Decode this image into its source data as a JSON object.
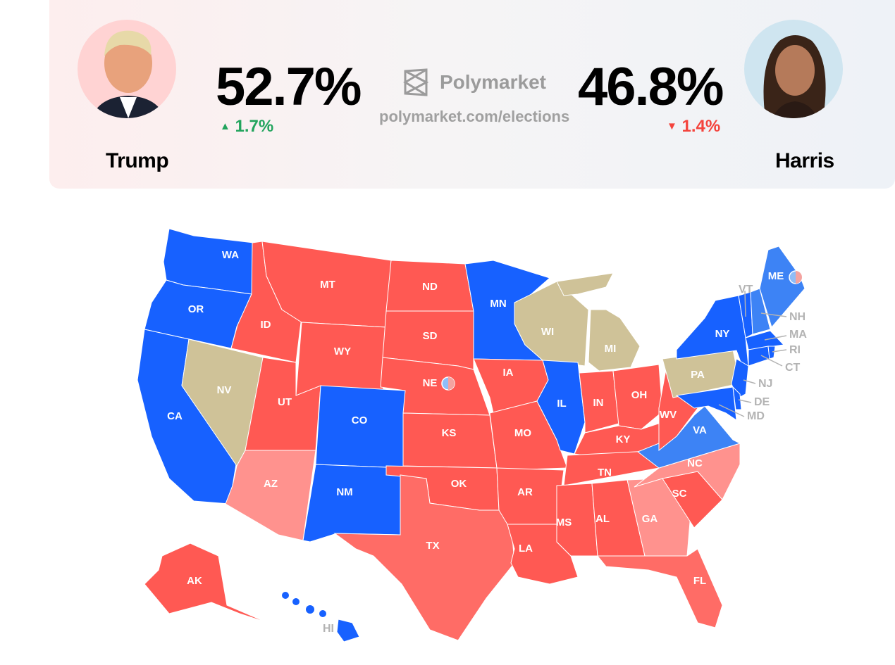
{
  "header": {
    "left": {
      "name": "Trump",
      "percent": "52.7%",
      "change": "1.7%",
      "direction": "up",
      "avatar_bg": "#ffd3d3"
    },
    "right": {
      "name": "Harris",
      "percent": "46.8%",
      "change": "1.4%",
      "direction": "down",
      "avatar_bg": "#cfe5f0"
    },
    "logo_text": "Polymarket",
    "url": "polymarket.com/elections",
    "up_color": "#22a45d",
    "down_color": "#f4433c"
  },
  "categories": {
    "dem_safe": "#1761ff",
    "dem_likely": "#3d83f5",
    "rep_safe": "#ff5953",
    "rep_likely": "#ff6c66",
    "rep_lean": "#ff928e",
    "tossup": "#cfc298"
  },
  "states": [
    {
      "abbr": "WA",
      "cat": "dem_safe"
    },
    {
      "abbr": "OR",
      "cat": "dem_safe"
    },
    {
      "abbr": "CA",
      "cat": "dem_safe"
    },
    {
      "abbr": "NV",
      "cat": "tossup"
    },
    {
      "abbr": "ID",
      "cat": "rep_safe"
    },
    {
      "abbr": "MT",
      "cat": "rep_safe"
    },
    {
      "abbr": "WY",
      "cat": "rep_safe"
    },
    {
      "abbr": "UT",
      "cat": "rep_safe"
    },
    {
      "abbr": "AZ",
      "cat": "rep_lean"
    },
    {
      "abbr": "CO",
      "cat": "dem_safe"
    },
    {
      "abbr": "NM",
      "cat": "dem_safe"
    },
    {
      "abbr": "ND",
      "cat": "rep_safe"
    },
    {
      "abbr": "SD",
      "cat": "rep_safe"
    },
    {
      "abbr": "NE",
      "cat": "rep_safe"
    },
    {
      "abbr": "KS",
      "cat": "rep_safe"
    },
    {
      "abbr": "OK",
      "cat": "rep_safe"
    },
    {
      "abbr": "TX",
      "cat": "rep_likely"
    },
    {
      "abbr": "MN",
      "cat": "dem_safe"
    },
    {
      "abbr": "IA",
      "cat": "rep_safe"
    },
    {
      "abbr": "MO",
      "cat": "rep_safe"
    },
    {
      "abbr": "AR",
      "cat": "rep_safe"
    },
    {
      "abbr": "LA",
      "cat": "rep_safe"
    },
    {
      "abbr": "WI",
      "cat": "tossup"
    },
    {
      "abbr": "IL",
      "cat": "dem_safe"
    },
    {
      "abbr": "MI",
      "cat": "tossup"
    },
    {
      "abbr": "IN",
      "cat": "rep_safe"
    },
    {
      "abbr": "OH",
      "cat": "rep_safe"
    },
    {
      "abbr": "KY",
      "cat": "rep_safe"
    },
    {
      "abbr": "TN",
      "cat": "rep_safe"
    },
    {
      "abbr": "MS",
      "cat": "rep_safe"
    },
    {
      "abbr": "AL",
      "cat": "rep_safe"
    },
    {
      "abbr": "GA",
      "cat": "rep_lean"
    },
    {
      "abbr": "FL",
      "cat": "rep_likely"
    },
    {
      "abbr": "SC",
      "cat": "rep_safe"
    },
    {
      "abbr": "NC",
      "cat": "rep_lean"
    },
    {
      "abbr": "VA",
      "cat": "dem_likely"
    },
    {
      "abbr": "WV",
      "cat": "rep_safe"
    },
    {
      "abbr": "PA",
      "cat": "tossup"
    },
    {
      "abbr": "NY",
      "cat": "dem_safe"
    },
    {
      "abbr": "NJ",
      "cat": "dem_safe"
    },
    {
      "abbr": "MD",
      "cat": "dem_safe"
    },
    {
      "abbr": "DE",
      "cat": "dem_safe"
    },
    {
      "abbr": "VT",
      "cat": "dem_safe"
    },
    {
      "abbr": "NH",
      "cat": "dem_likely"
    },
    {
      "abbr": "ME",
      "cat": "dem_likely"
    },
    {
      "abbr": "MA",
      "cat": "dem_safe"
    },
    {
      "abbr": "CT",
      "cat": "dem_safe"
    },
    {
      "abbr": "RI",
      "cat": "dem_safe"
    },
    {
      "abbr": "AK",
      "cat": "rep_safe"
    },
    {
      "abbr": "HI",
      "cat": "dem_safe"
    }
  ]
}
